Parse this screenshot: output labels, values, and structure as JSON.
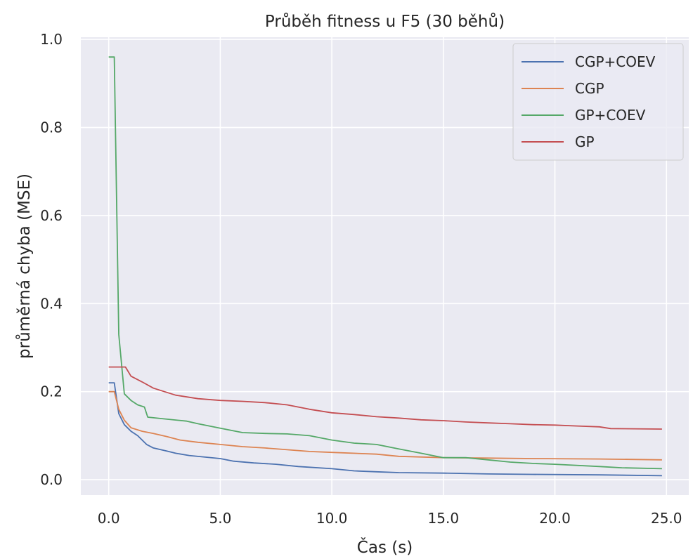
{
  "chart_data": {
    "type": "line",
    "title": "Průběh fitness u F5 (30 běhů)",
    "xlabel": "Čas (s)",
    "ylabel": "průměrná chyba (MSE)",
    "xlim": [
      -1.25,
      26.0
    ],
    "ylim": [
      -0.035,
      1.005
    ],
    "xticks": [
      0,
      5,
      10,
      15,
      20,
      25
    ],
    "xtick_labels": [
      "0.0",
      "5.0",
      "10.0",
      "15.0",
      "20.0",
      "25.0"
    ],
    "yticks": [
      0,
      0.2,
      0.4,
      0.6,
      0.8,
      1.0
    ],
    "ytick_labels": [
      "0.0",
      "0.2",
      "0.4",
      "0.6",
      "0.8",
      "1.0"
    ],
    "grid": true,
    "legend_position": "top-right",
    "series": [
      {
        "name": "CGP+COEV",
        "color": "#4c72b0",
        "points": [
          [
            0,
            0.22
          ],
          [
            0.25,
            0.22
          ],
          [
            0.45,
            0.15
          ],
          [
            0.7,
            0.125
          ],
          [
            1.0,
            0.11
          ],
          [
            1.3,
            0.1
          ],
          [
            1.7,
            0.08
          ],
          [
            2.0,
            0.072
          ],
          [
            2.6,
            0.065
          ],
          [
            3.0,
            0.06
          ],
          [
            3.6,
            0.055
          ],
          [
            4.2,
            0.052
          ],
          [
            5.0,
            0.048
          ],
          [
            5.6,
            0.042
          ],
          [
            6.5,
            0.038
          ],
          [
            7.5,
            0.035
          ],
          [
            8.5,
            0.03
          ],
          [
            10.0,
            0.025
          ],
          [
            11.0,
            0.02
          ],
          [
            12.0,
            0.018
          ],
          [
            13.0,
            0.016
          ],
          [
            15.0,
            0.015
          ],
          [
            17.0,
            0.013
          ],
          [
            19.0,
            0.012
          ],
          [
            22.0,
            0.011
          ],
          [
            24.8,
            0.009
          ]
        ]
      },
      {
        "name": "CGP",
        "color": "#dd8452",
        "points": [
          [
            0,
            0.2
          ],
          [
            0.25,
            0.2
          ],
          [
            0.45,
            0.16
          ],
          [
            0.7,
            0.135
          ],
          [
            1.0,
            0.118
          ],
          [
            1.5,
            0.11
          ],
          [
            2.0,
            0.105
          ],
          [
            2.6,
            0.098
          ],
          [
            3.2,
            0.09
          ],
          [
            4.0,
            0.085
          ],
          [
            5.0,
            0.08
          ],
          [
            6.0,
            0.075
          ],
          [
            7.0,
            0.072
          ],
          [
            8.0,
            0.068
          ],
          [
            9.0,
            0.064
          ],
          [
            10.0,
            0.062
          ],
          [
            12.0,
            0.058
          ],
          [
            13.0,
            0.053
          ],
          [
            15.0,
            0.05
          ],
          [
            17.0,
            0.049
          ],
          [
            19.0,
            0.048
          ],
          [
            22.0,
            0.047
          ],
          [
            24.8,
            0.045
          ]
        ]
      },
      {
        "name": "GP+COEV",
        "color": "#55a868",
        "points": [
          [
            0,
            0.96
          ],
          [
            0.25,
            0.96
          ],
          [
            0.45,
            0.33
          ],
          [
            0.7,
            0.195
          ],
          [
            1.0,
            0.18
          ],
          [
            1.3,
            0.17
          ],
          [
            1.6,
            0.165
          ],
          [
            1.75,
            0.142
          ],
          [
            2.5,
            0.138
          ],
          [
            3.5,
            0.133
          ],
          [
            4.0,
            0.127
          ],
          [
            5.0,
            0.117
          ],
          [
            6.0,
            0.107
          ],
          [
            7.0,
            0.105
          ],
          [
            8.0,
            0.104
          ],
          [
            9.0,
            0.1
          ],
          [
            10.0,
            0.09
          ],
          [
            11.0,
            0.083
          ],
          [
            12.0,
            0.08
          ],
          [
            13.0,
            0.07
          ],
          [
            14.0,
            0.06
          ],
          [
            15.0,
            0.05
          ],
          [
            16.0,
            0.05
          ],
          [
            17.0,
            0.045
          ],
          [
            18.0,
            0.04
          ],
          [
            19.0,
            0.037
          ],
          [
            20.0,
            0.035
          ],
          [
            22.0,
            0.03
          ],
          [
            23.0,
            0.027
          ],
          [
            24.8,
            0.025
          ]
        ]
      },
      {
        "name": "GP",
        "color": "#c44e52",
        "points": [
          [
            0,
            0.256
          ],
          [
            0.75,
            0.256
          ],
          [
            1.0,
            0.235
          ],
          [
            1.5,
            0.222
          ],
          [
            2.0,
            0.208
          ],
          [
            2.5,
            0.2
          ],
          [
            3.0,
            0.192
          ],
          [
            4.0,
            0.184
          ],
          [
            5.0,
            0.18
          ],
          [
            6.0,
            0.178
          ],
          [
            7.0,
            0.175
          ],
          [
            8.0,
            0.17
          ],
          [
            9.0,
            0.16
          ],
          [
            10.0,
            0.152
          ],
          [
            11.0,
            0.148
          ],
          [
            12.0,
            0.143
          ],
          [
            13.0,
            0.14
          ],
          [
            14.0,
            0.136
          ],
          [
            15.0,
            0.134
          ],
          [
            16.0,
            0.131
          ],
          [
            17.0,
            0.129
          ],
          [
            18.0,
            0.127
          ],
          [
            19.0,
            0.125
          ],
          [
            20.0,
            0.124
          ],
          [
            21.0,
            0.122
          ],
          [
            22.0,
            0.12
          ],
          [
            22.5,
            0.116
          ],
          [
            24.8,
            0.115
          ]
        ]
      }
    ]
  }
}
